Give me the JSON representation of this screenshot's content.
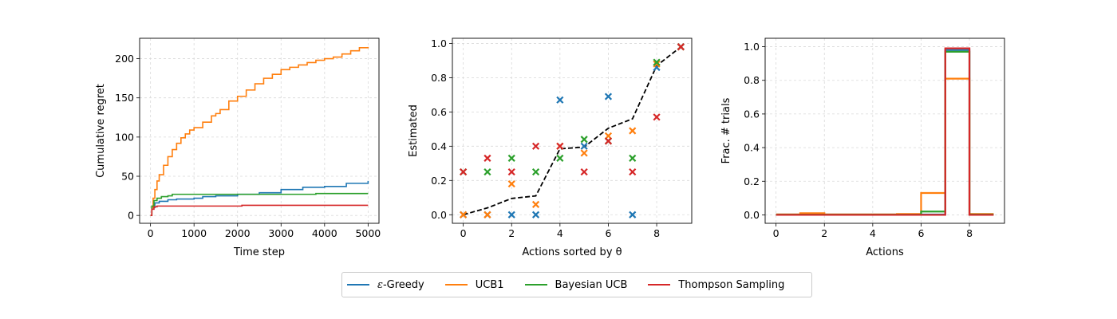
{
  "colors": {
    "eps_greedy": "#1f77b4",
    "ucb1": "#ff7f0e",
    "bayes_ucb": "#2ca02c",
    "thompson": "#d62728",
    "true_theta": "#000000",
    "grid": "#d9d9d9"
  },
  "legend": {
    "items": [
      {
        "label": "-Greedy",
        "prefix": "ε",
        "color": "#1f77b4"
      },
      {
        "label": "UCB1",
        "prefix": "",
        "color": "#ff7f0e"
      },
      {
        "label": "Bayesian UCB",
        "prefix": "",
        "color": "#2ca02c"
      },
      {
        "label": "Thompson Sampling",
        "prefix": "",
        "color": "#d62728"
      }
    ]
  },
  "chart_data": [
    {
      "type": "line",
      "title": "",
      "xlabel": "Time step",
      "ylabel": "Cumulative regret",
      "xlim": [
        -250,
        5250
      ],
      "ylim": [
        -10,
        226
      ],
      "xticks": [
        0,
        1000,
        2000,
        3000,
        4000,
        5000
      ],
      "yticks": [
        0,
        50,
        100,
        150,
        200
      ],
      "grid": true,
      "series": [
        {
          "name": "ε-Greedy",
          "color": "#1f77b4",
          "x": [
            0,
            30,
            100,
            200,
            400,
            600,
            1000,
            1200,
            1500,
            2000,
            2500,
            3000,
            3500,
            4000,
            4500,
            5000
          ],
          "y": [
            0,
            10,
            16,
            18,
            20,
            21,
            22,
            24,
            25,
            27,
            29,
            33,
            36,
            37,
            41,
            44
          ]
        },
        {
          "name": "UCB1",
          "color": "#ff7f0e",
          "x": [
            0,
            30,
            60,
            100,
            150,
            200,
            300,
            400,
            500,
            600,
            700,
            800,
            900,
            1000,
            1200,
            1400,
            1500,
            1600,
            1800,
            2000,
            2200,
            2400,
            2600,
            2800,
            3000,
            3200,
            3400,
            3600,
            3800,
            4000,
            4200,
            4400,
            4600,
            4800,
            5000
          ],
          "y": [
            0,
            10,
            22,
            33,
            44,
            52,
            64,
            75,
            84,
            92,
            99,
            104,
            109,
            112,
            119,
            127,
            130,
            135,
            146,
            152,
            160,
            168,
            175,
            180,
            186,
            189,
            192,
            195,
            198,
            200,
            202,
            206,
            210,
            214,
            215
          ]
        },
        {
          "name": "Bayesian UCB",
          "color": "#2ca02c",
          "x": [
            0,
            30,
            80,
            150,
            250,
            400,
            500,
            1000,
            2000,
            3000,
            3800,
            4000,
            5000
          ],
          "y": [
            0,
            12,
            19,
            22,
            24,
            25,
            27,
            27,
            27,
            27,
            28,
            28,
            28
          ]
        },
        {
          "name": "Thompson Sampling",
          "color": "#d62728",
          "x": [
            0,
            30,
            80,
            150,
            500,
            1000,
            2000,
            2100,
            3000,
            4000,
            5000
          ],
          "y": [
            0,
            8,
            11,
            12,
            12,
            12,
            12,
            13,
            13,
            13,
            13
          ]
        }
      ]
    },
    {
      "type": "scatter",
      "title": "",
      "xlabel": "Actions sorted by θ",
      "ylabel": "Estimated",
      "xlim": [
        -0.45,
        9.45
      ],
      "ylim": [
        -0.05,
        1.03
      ],
      "xticks": [
        0,
        2,
        4,
        6,
        8
      ],
      "yticks": [
        0.0,
        0.2,
        0.4,
        0.6,
        0.8,
        1.0
      ],
      "grid": true,
      "true_theta": {
        "x": [
          0,
          1,
          2,
          3,
          4,
          5,
          6,
          7,
          8,
          9
        ],
        "y": [
          0.0,
          0.04,
          0.095,
          0.11,
          0.385,
          0.395,
          0.505,
          0.56,
          0.87,
          0.98
        ]
      },
      "series": [
        {
          "name": "ε-Greedy",
          "color": "#1f77b4",
          "marker": "x",
          "x": [
            0,
            1,
            2,
            3,
            4,
            5,
            6,
            7,
            8,
            9
          ],
          "y": [
            0.0,
            0.0,
            0.0,
            0.0,
            0.67,
            0.4,
            0.69,
            0.0,
            0.86,
            0.98
          ]
        },
        {
          "name": "UCB1",
          "color": "#ff7f0e",
          "marker": "x",
          "x": [
            0,
            1,
            2,
            3,
            4,
            5,
            6,
            7,
            8,
            9
          ],
          "y": [
            0.0,
            0.0,
            0.18,
            0.06,
            0.4,
            0.36,
            0.46,
            0.49,
            0.88,
            0.98
          ]
        },
        {
          "name": "Bayesian UCB",
          "color": "#2ca02c",
          "marker": "x",
          "x": [
            0,
            1,
            2,
            3,
            4,
            5,
            6,
            7,
            8,
            9
          ],
          "y": [
            0.25,
            0.25,
            0.33,
            0.25,
            0.33,
            0.44,
            0.43,
            0.33,
            0.89,
            0.98
          ]
        },
        {
          "name": "Thompson Sampling",
          "color": "#d62728",
          "marker": "x",
          "x": [
            0,
            1,
            2,
            3,
            4,
            5,
            6,
            7,
            8,
            9
          ],
          "y": [
            0.25,
            0.33,
            0.25,
            0.4,
            0.4,
            0.25,
            0.43,
            0.25,
            0.57,
            0.98
          ]
        }
      ]
    },
    {
      "type": "line",
      "subtype": "step",
      "title": "",
      "xlabel": "Actions",
      "ylabel": "Frac. # trials",
      "xlim": [
        -0.45,
        9.45
      ],
      "ylim": [
        -0.05,
        1.05
      ],
      "xticks": [
        0,
        2,
        4,
        6,
        8
      ],
      "yticks": [
        0.0,
        0.2,
        0.4,
        0.6,
        0.8,
        1.0
      ],
      "grid": true,
      "series": [
        {
          "name": "ε-Greedy",
          "color": "#1f77b4",
          "x": [
            0,
            1,
            2,
            3,
            4,
            5,
            6,
            7,
            8,
            9
          ],
          "y": [
            0.002,
            0.002,
            0.002,
            0.002,
            0.002,
            0.002,
            0.002,
            0.98,
            0.002,
            0.002
          ]
        },
        {
          "name": "UCB1",
          "color": "#ff7f0e",
          "x": [
            0,
            1,
            2,
            3,
            4,
            5,
            6,
            7,
            8,
            9
          ],
          "y": [
            0.003,
            0.01,
            0.003,
            0.003,
            0.003,
            0.005,
            0.13,
            0.81,
            0.005,
            0.005
          ]
        },
        {
          "name": "Bayesian UCB",
          "color": "#2ca02c",
          "x": [
            0,
            1,
            2,
            3,
            4,
            5,
            6,
            7,
            8,
            9
          ],
          "y": [
            0.001,
            0.001,
            0.001,
            0.001,
            0.001,
            0.001,
            0.02,
            0.97,
            0.002,
            0.002
          ]
        },
        {
          "name": "Thompson Sampling",
          "color": "#d62728",
          "x": [
            0,
            1,
            2,
            3,
            4,
            5,
            6,
            7,
            8,
            9
          ],
          "y": [
            0.0,
            0.0,
            0.0,
            0.0,
            0.0,
            0.0,
            0.0,
            0.99,
            0.0,
            0.0
          ]
        }
      ]
    }
  ]
}
